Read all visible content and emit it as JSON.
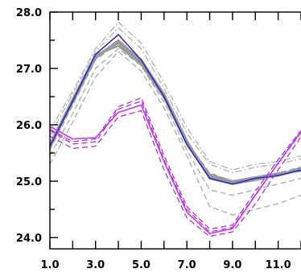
{
  "chart_data": {
    "type": "line",
    "title": "",
    "xlabel": "",
    "ylabel": "",
    "xlim": [
      1,
      12
    ],
    "ylim": [
      23.8,
      28
    ],
    "x_ticks": [
      1,
      2,
      3,
      4,
      5,
      6,
      7,
      8,
      9,
      10,
      11,
      12
    ],
    "x_tick_labels": [
      "1.0",
      "3.0",
      "5.0",
      "7.0",
      "9.0",
      "11.0"
    ],
    "x_tick_label_values": [
      1,
      3,
      5,
      7,
      9,
      11
    ],
    "y_tick_labels": [
      "24.0",
      "25.0",
      "26.0",
      "27.0",
      "28.0"
    ],
    "y_tick_label_values": [
      24,
      25,
      26,
      27,
      28
    ],
    "grid": false,
    "legend": "none",
    "x": [
      1,
      2,
      3,
      4,
      5,
      6,
      7,
      8,
      9,
      10,
      11,
      12
    ],
    "series": [
      {
        "color": "#b0b0b0",
        "style": "dashdot",
        "width": 1.3,
        "values": [
          25.9,
          26.6,
          27.35,
          27.82,
          27.45,
          26.75,
          25.95,
          25.35,
          25.2,
          25.3,
          25.35,
          25.45
        ]
      },
      {
        "color": "#b0b0b0",
        "style": "dashdot",
        "width": 1.3,
        "values": [
          25.8,
          26.55,
          27.3,
          27.72,
          27.35,
          26.65,
          25.85,
          25.3,
          25.15,
          25.25,
          25.3,
          25.4
        ]
      },
      {
        "color": "#a8a8a8",
        "style": "dashed",
        "width": 1.3,
        "values": [
          25.3,
          26.05,
          26.85,
          27.3,
          26.95,
          26.3,
          25.45,
          24.55,
          24.4,
          24.5,
          24.6,
          24.75
        ]
      },
      {
        "color": "#a8a8a8",
        "style": "dashed",
        "width": 1.3,
        "values": [
          25.45,
          26.2,
          27.0,
          27.35,
          27.05,
          26.4,
          25.55,
          24.85,
          24.75,
          24.85,
          24.95,
          25.05
        ]
      },
      {
        "color": "#a8a8a8",
        "style": "dashed",
        "width": 1.3,
        "values": [
          25.55,
          26.35,
          27.15,
          27.45,
          27.1,
          26.5,
          25.7,
          25.15,
          25.0,
          25.05,
          25.15,
          25.25
        ]
      },
      {
        "color": "#9a9a9a",
        "style": "solid",
        "width": 2.5,
        "values": [
          25.62,
          26.42,
          27.2,
          27.5,
          27.13,
          26.52,
          25.7,
          25.1,
          24.98,
          25.05,
          25.12,
          25.22
        ]
      },
      {
        "color": "#9a9a9a",
        "style": "solid",
        "width": 2.5,
        "values": [
          25.64,
          26.44,
          27.22,
          27.45,
          27.1,
          26.5,
          25.68,
          25.08,
          24.96,
          25.03,
          25.1,
          25.2
        ]
      },
      {
        "color": "#9a9a9a",
        "style": "solid",
        "width": 2.5,
        "values": [
          25.66,
          26.46,
          27.24,
          27.4,
          27.07,
          26.48,
          25.66,
          25.12,
          25.0,
          25.07,
          25.14,
          25.18
        ]
      },
      {
        "color": "#9a9a9a",
        "style": "solid",
        "width": 2.5,
        "values": [
          25.6,
          26.4,
          27.18,
          27.48,
          27.15,
          26.55,
          25.72,
          25.05,
          24.95,
          25.02,
          25.1,
          25.24
        ]
      },
      {
        "color": "#2a2acc",
        "style": "solid",
        "width": 1.6,
        "values": [
          25.62,
          26.42,
          27.25,
          27.6,
          27.15,
          26.5,
          25.65,
          25.05,
          24.95,
          25.05,
          25.1,
          25.2
        ]
      },
      {
        "color": "#b030e0",
        "style": "dashed",
        "width": 1.3,
        "values": [
          25.92,
          25.7,
          25.75,
          26.32,
          26.48,
          25.45,
          24.55,
          24.15,
          24.22,
          24.82,
          25.38,
          25.9
        ]
      },
      {
        "color": "#b030e0",
        "style": "dashed",
        "width": 1.3,
        "values": [
          25.9,
          25.66,
          25.7,
          26.28,
          26.42,
          25.38,
          24.5,
          24.1,
          24.18,
          24.76,
          25.32,
          25.86
        ]
      },
      {
        "color": "#b030e0",
        "style": "dashed",
        "width": 1.3,
        "values": [
          25.8,
          25.58,
          25.62,
          26.14,
          26.25,
          25.2,
          24.35,
          24.02,
          24.1,
          24.6,
          25.2,
          25.78
        ]
      },
      {
        "color": "#c23ae8",
        "style": "solid",
        "width": 1.6,
        "values": [
          25.97,
          25.75,
          25.77,
          26.22,
          26.35,
          25.35,
          24.45,
          24.07,
          24.16,
          24.75,
          25.32,
          25.88
        ]
      }
    ]
  }
}
